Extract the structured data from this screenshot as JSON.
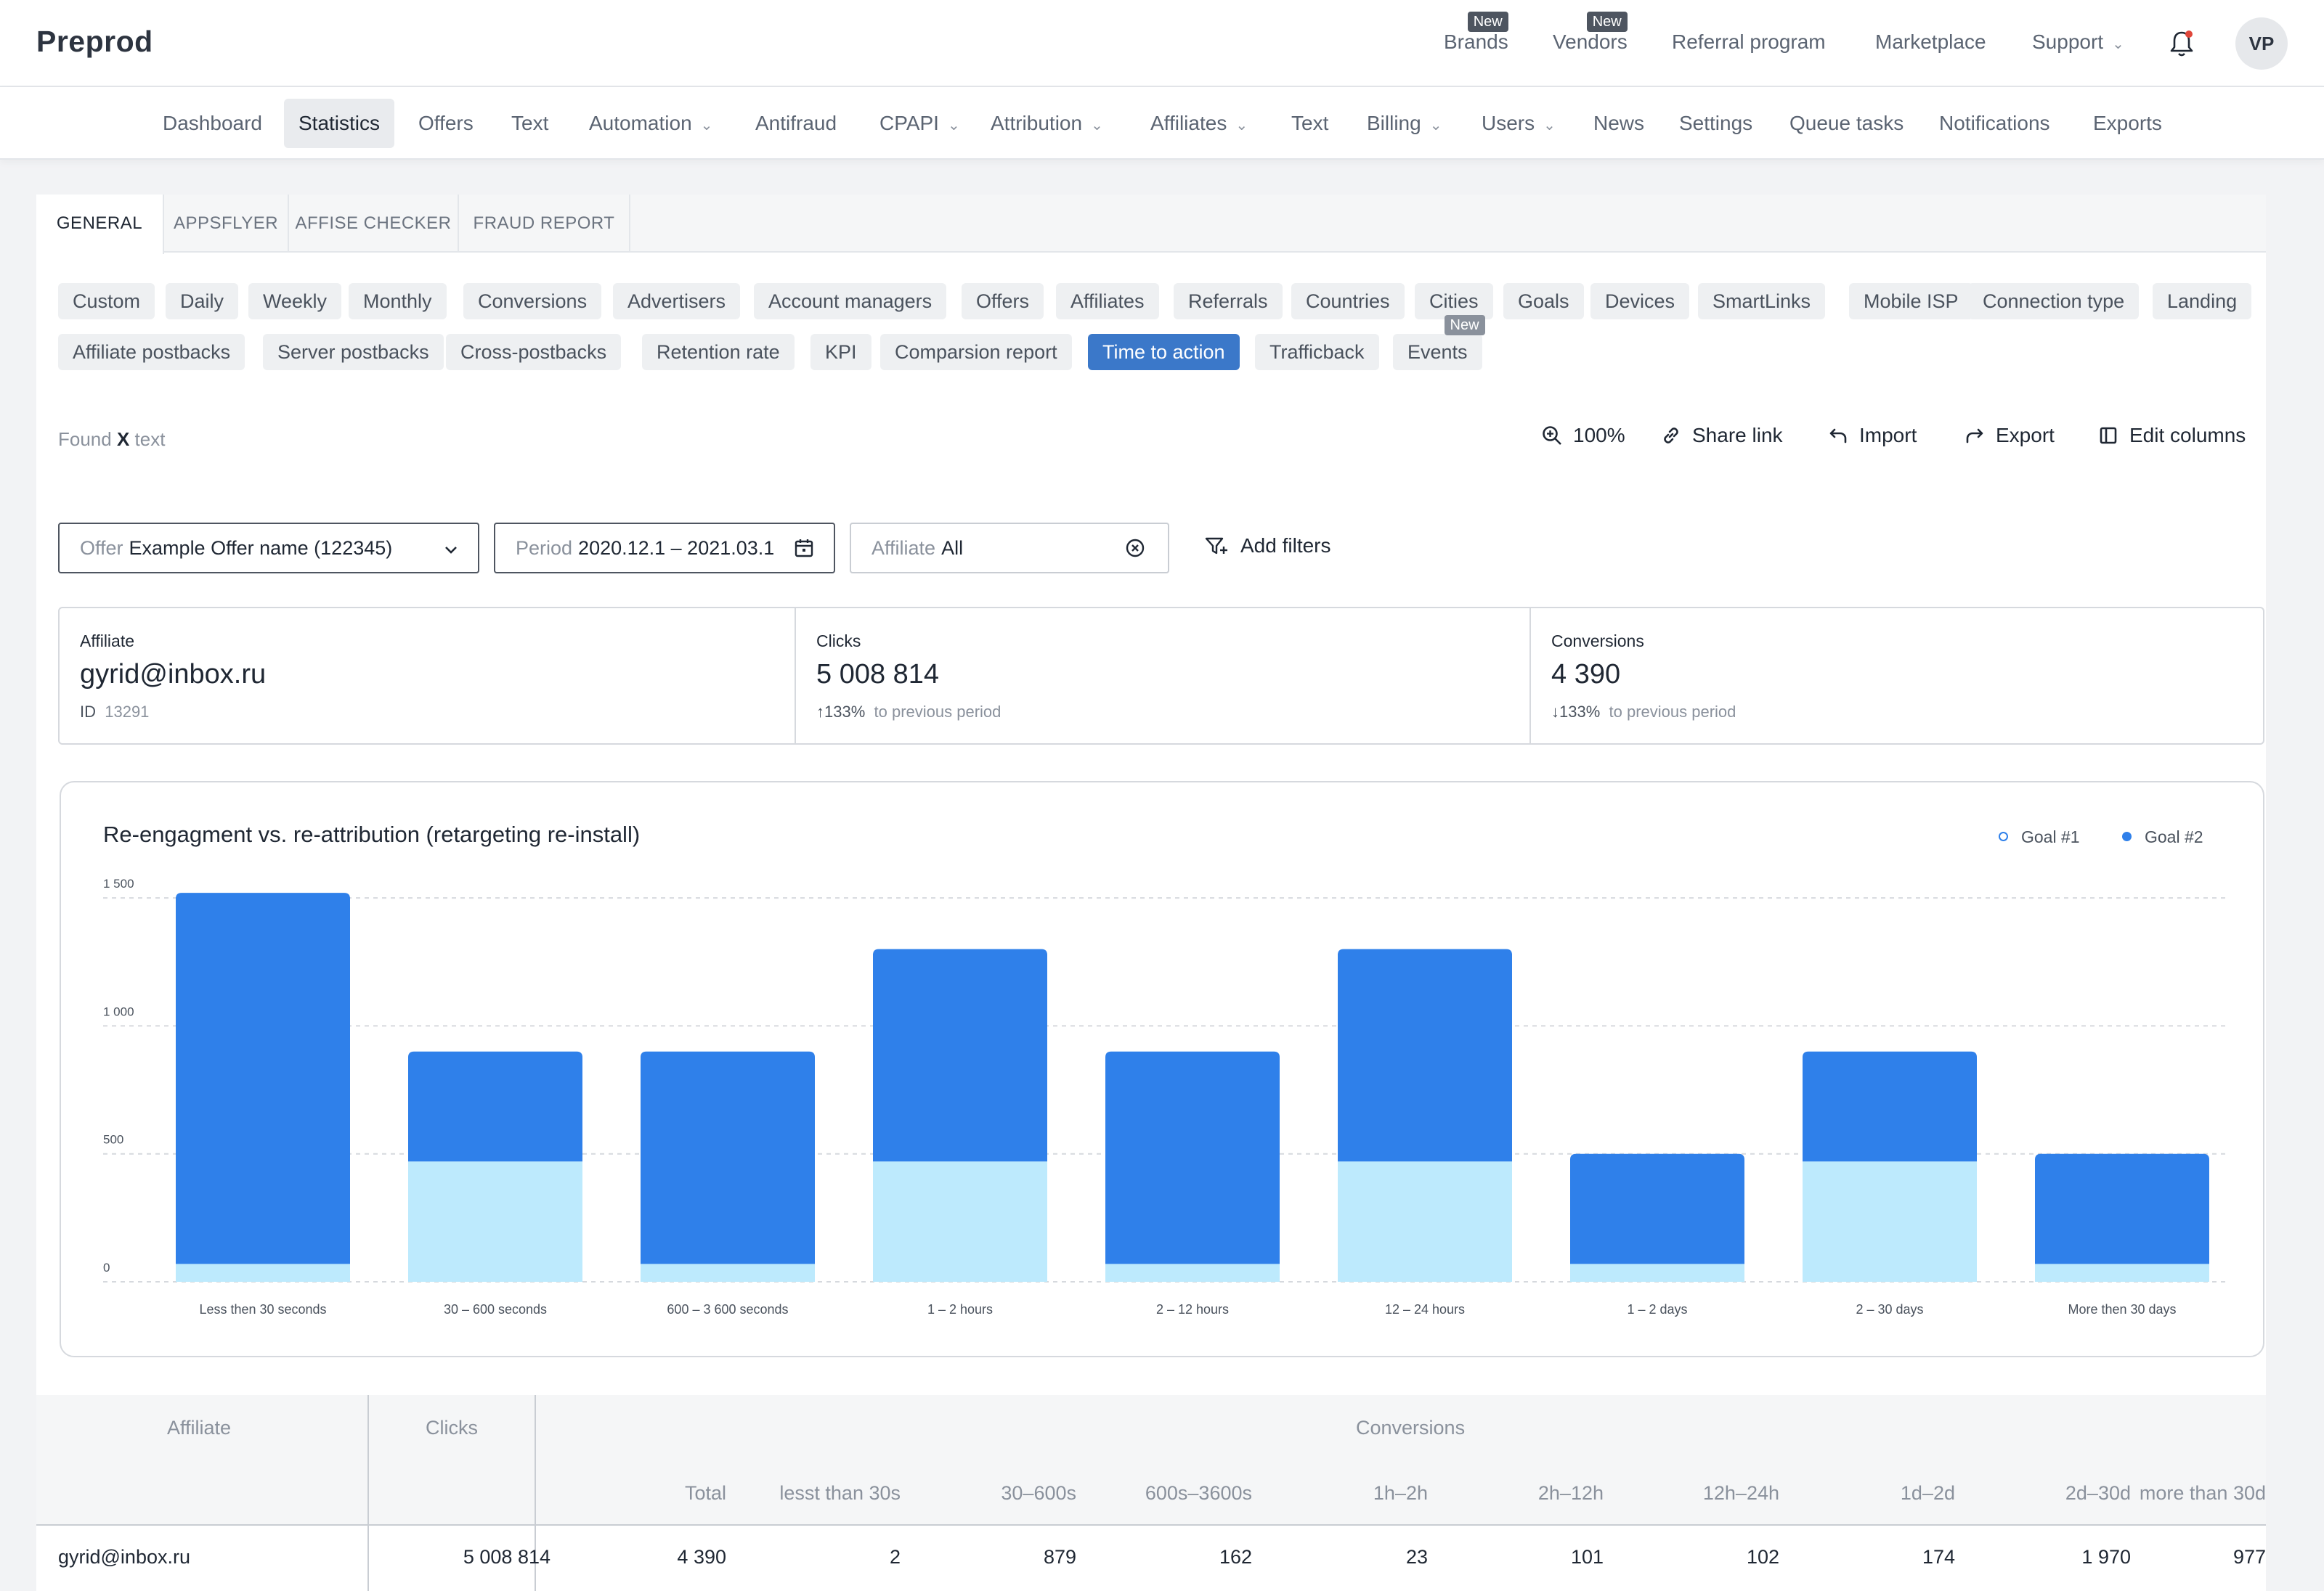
{
  "app": {
    "title": "Preprod",
    "avatar_initials": "VP"
  },
  "top_nav": [
    {
      "label": "Brands",
      "badge": "New"
    },
    {
      "label": "Vendors",
      "badge": "New"
    },
    {
      "label": "Referral program"
    },
    {
      "label": "Marketplace"
    },
    {
      "label": "Support",
      "dropdown": true
    }
  ],
  "main_nav": [
    {
      "label": "Dashboard"
    },
    {
      "label": "Statistics",
      "active": true
    },
    {
      "label": "Offers"
    },
    {
      "label": "Text"
    },
    {
      "label": "Automation",
      "dropdown": true
    },
    {
      "label": "Antifraud"
    },
    {
      "label": "CPAPI",
      "dropdown": true
    },
    {
      "label": "Attribution",
      "dropdown": true
    },
    {
      "label": "Affiliates",
      "dropdown": true
    },
    {
      "label": "Text"
    },
    {
      "label": "Billing",
      "dropdown": true
    },
    {
      "label": "Users",
      "dropdown": true
    },
    {
      "label": "News"
    },
    {
      "label": "Settings"
    },
    {
      "label": "Queue tasks"
    },
    {
      "label": "Notifications"
    },
    {
      "label": "Exports"
    }
  ],
  "tabs": [
    "GENERAL",
    "APPSFLYER",
    "AFFISE CHECKER",
    "FRAUD REPORT"
  ],
  "report_chips_row1": [
    "Custom",
    "Daily",
    "Weekly",
    "Monthly",
    "Conversions",
    "Advertisers",
    "Account managers",
    "Offers",
    "Affiliates",
    "Referrals",
    "Countries",
    "Cities",
    "Goals",
    "Devices",
    "SmartLinks",
    "Mobile ISP",
    "Connection type",
    "Landing"
  ],
  "report_chips_row2": [
    "Affiliate postbacks",
    "Server postbacks",
    "Cross-postbacks",
    "Retention rate",
    "KPI",
    "Comparsion report",
    "Time to action",
    "Trafficback",
    "Events"
  ],
  "active_chip": "Time to action",
  "events_badge": "New",
  "found": {
    "prefix": "Found",
    "count": "X",
    "suffix": "text"
  },
  "toolbar": {
    "zoom": "100%",
    "share": "Share link",
    "import": "Import",
    "export": "Export",
    "edit_columns": "Edit columns"
  },
  "filters": {
    "offer_label": "Offer",
    "offer_value": "Example Offer name",
    "offer_id": "(122345)",
    "period_label": "Period",
    "period_value": "2020.12.1 – 2021.03.1",
    "affiliate_label": "Affiliate",
    "affiliate_value": "All",
    "add_filters": "Add filters"
  },
  "stats": {
    "affiliate": {
      "label": "Affiliate",
      "value": "gyrid@inbox.ru",
      "id_label": "ID",
      "id_value": "13291"
    },
    "clicks": {
      "label": "Clicks",
      "value": "5 008 814",
      "change": "133%",
      "note": "to previous period",
      "direction": "up"
    },
    "conversions": {
      "label": "Conversions",
      "value": "4 390",
      "change": "133%",
      "note": "to previous period",
      "direction": "down"
    }
  },
  "chart_data": {
    "type": "bar",
    "title": "Re-engagment vs. re-attribution (retargeting re-install)",
    "categories": [
      "Less then 30 seconds",
      "30 – 600 seconds",
      "600 – 3 600 seconds",
      "1 – 2 hours",
      "2 – 12 hours",
      "12 – 24 hours",
      "1 – 2 days",
      "2 – 30 days",
      "More then 30 days"
    ],
    "series": [
      {
        "name": "Goal #1",
        "color": "#bdeafd",
        "values": [
          70,
          470,
          70,
          470,
          70,
          470,
          70,
          470,
          70
        ]
      },
      {
        "name": "Goal #2",
        "color": "#2f80ea",
        "values": [
          1450,
          430,
          830,
          830,
          830,
          830,
          430,
          430,
          430
        ]
      }
    ],
    "stacked": true,
    "y_ticks": [
      "0",
      "500",
      "1 000",
      "1 500"
    ],
    "ylim": [
      0,
      1560
    ],
    "grid": true,
    "legend": "top-right"
  },
  "table": {
    "group_headers": {
      "affiliate": "Affiliate",
      "clicks": "Clicks",
      "conversions": "Conversions"
    },
    "sub_headers": [
      "Total",
      "lesst than 30s",
      "30–600s",
      "600s–3600s",
      "1h–2h",
      "2h–12h",
      "12h–24h",
      "1d–2d",
      "2d–30d",
      "more than 30d"
    ],
    "rows": [
      {
        "affiliate": "gyrid@inbox.ru",
        "clicks": "5 008 814",
        "values": [
          "4 390",
          "2",
          "879",
          "162",
          "23",
          "101",
          "102",
          "174",
          "1 970",
          "977"
        ]
      }
    ]
  }
}
